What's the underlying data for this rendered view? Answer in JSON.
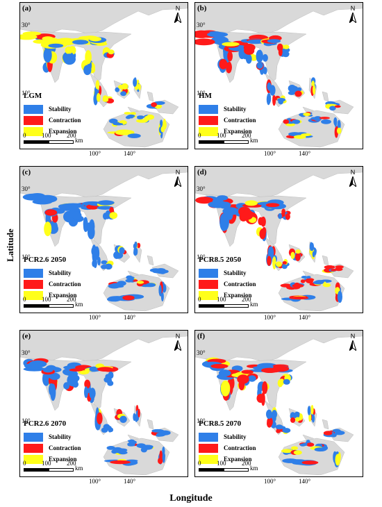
{
  "panels": [
    {
      "label": "(a)",
      "scenario": "LGM",
      "stability": 0.35,
      "contraction": 0.1,
      "expansion": 0.55
    },
    {
      "label": "(b)",
      "scenario": "HM",
      "stability": 0.5,
      "contraction": 0.3,
      "expansion": 0.2
    },
    {
      "label": "(c)",
      "scenario": "PCR2.6 2050",
      "stability": 0.65,
      "contraction": 0.2,
      "expansion": 0.15
    },
    {
      "label": "(d)",
      "scenario": "PCR8.5 2050",
      "stability": 0.45,
      "contraction": 0.4,
      "expansion": 0.15
    },
    {
      "label": "(e)",
      "scenario": "PCR2.6 2070",
      "stability": 0.7,
      "contraction": 0.25,
      "expansion": 0.05
    },
    {
      "label": "(f)",
      "scenario": "PCR8.5 2070",
      "stability": 0.5,
      "contraction": 0.35,
      "expansion": 0.15
    }
  ],
  "legend": [
    {
      "label": "Stability",
      "color": "#2f7fe8"
    },
    {
      "label": "Contraction",
      "color": "#ff1a1a"
    },
    {
      "label": "Expansion",
      "color": "#ffff1a"
    }
  ],
  "lat_ticks": [
    "30°",
    "10°"
  ],
  "lon_ticks": [
    "100°",
    "140°"
  ],
  "scale": {
    "ticks": [
      "0",
      "100",
      "200"
    ],
    "unit": "km"
  },
  "north": "N",
  "axis": {
    "y": "Latitude",
    "x": "Longitude"
  },
  "land_color": "#d9d9d9"
}
